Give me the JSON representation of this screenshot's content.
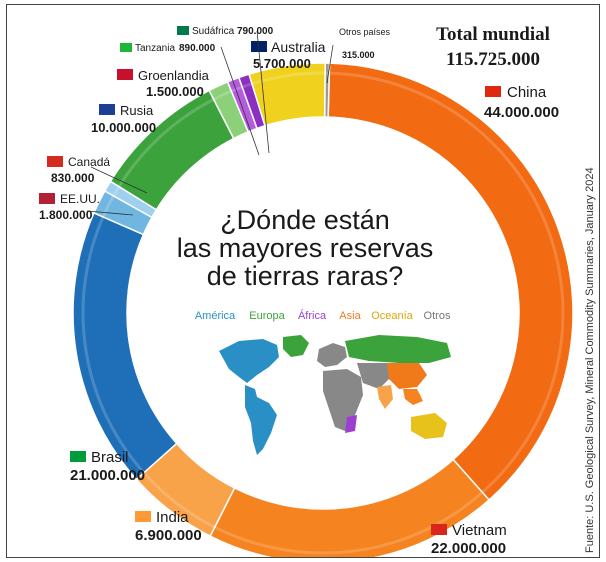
{
  "header": {
    "total_label": "Total mundial",
    "total_value": "115.725.000"
  },
  "center": {
    "title_lines": [
      "¿Dónde están",
      "las mayores reservas",
      "de tierras raras?"
    ]
  },
  "legend": [
    {
      "name": "América",
      "color": "#2a8fc4"
    },
    {
      "name": "Europa",
      "color": "#3ca23c"
    },
    {
      "name": "África",
      "color": "#9a3fd0"
    },
    {
      "name": "Asia",
      "color": "#f07a1a"
    },
    {
      "name": "Oceanía",
      "color": "#e6c21a"
    },
    {
      "name": "Otros",
      "color": "#888888"
    }
  ],
  "source": "Fuente: U.S. Geological Survey, Mineral Commodity Summaries, January 2024",
  "chart_data": {
    "type": "pie",
    "title": "¿Dónde están las mayores reservas de tierras raras?",
    "total": 115725000,
    "slices": [
      {
        "name": "China",
        "value": 44000000,
        "label": "44.000.000",
        "region": "Asia",
        "color": "#f26a12"
      },
      {
        "name": "Vietnam",
        "value": 22000000,
        "label": "22.000.000",
        "region": "Asia",
        "color": "#f5831f"
      },
      {
        "name": "India",
        "value": 6900000,
        "label": "6.900.000",
        "region": "Asia",
        "color": "#f8a24a"
      },
      {
        "name": "Brasil",
        "value": 21000000,
        "label": "21.000.000",
        "region": "América",
        "color": "#1f6fb8"
      },
      {
        "name": "EE.UU.",
        "value": 1800000,
        "label": "1.800.000",
        "region": "América",
        "color": "#6fb6e0"
      },
      {
        "name": "Canadá",
        "value": 830000,
        "label": "830.000",
        "region": "América",
        "color": "#9fd0ee"
      },
      {
        "name": "Rusia",
        "value": 10000000,
        "label": "10.000.000",
        "region": "Europa",
        "color": "#3ca23c"
      },
      {
        "name": "Groenlandia",
        "value": 1500000,
        "label": "1.500.000",
        "region": "Europa",
        "color": "#8cd07a"
      },
      {
        "name": "Tanzania",
        "value": 890000,
        "label": "890.000",
        "region": "África",
        "color": "#b45be0"
      },
      {
        "name": "Sudáfrica",
        "value": 790000,
        "label": "790.000",
        "region": "África",
        "color": "#8a2fc0"
      },
      {
        "name": "Australia",
        "value": 5700000,
        "label": "5.700.000",
        "region": "Oceanía",
        "color": "#f0d21e"
      },
      {
        "name": "Otros países",
        "value": 315000,
        "label": "315.000",
        "region": "Otros",
        "color": "#999999"
      }
    ],
    "legend_placement": "center"
  }
}
